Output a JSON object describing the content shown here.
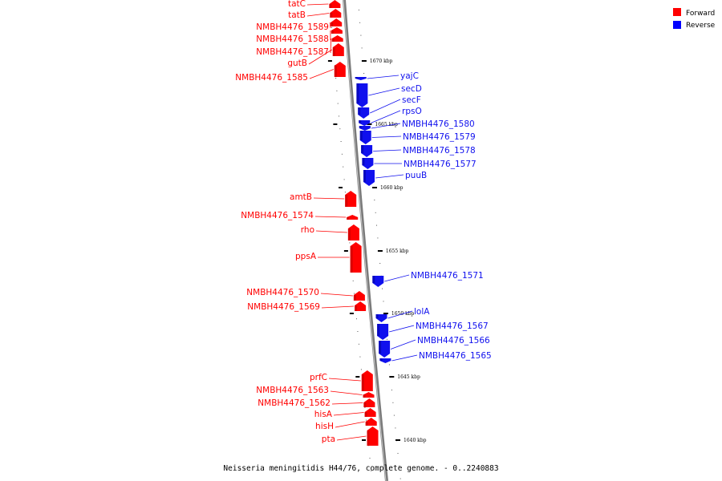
{
  "caption": "Neisseria meningitidis H44/76, complete genome. - 0..2240883",
  "legend": {
    "items": [
      {
        "label": "Forward",
        "color": "#ff0000"
      },
      {
        "label": "Reverse",
        "color": "#0000ff"
      }
    ]
  },
  "colors": {
    "forward": "#ff0000",
    "reverse": "#1010ee",
    "axis": "#808080"
  },
  "kbp_labels": [
    "1670 kbp",
    "1665 kbp",
    "1660 kbp",
    "1655 kbp",
    "1650 kbp",
    "1645 kbp",
    "1640 kbp"
  ],
  "genes_forward": [
    "tatC",
    "tatB",
    "NMBH4476_1589",
    "NMBH4476_1588",
    "NMBH4476_1587",
    "gutB",
    "NMBH4476_1585",
    "amtB",
    "NMBH4476_1574",
    "rho",
    "ppsA",
    "NMBH4476_1570",
    "NMBH4476_1569",
    "prfC",
    "NMBH4476_1563",
    "NMBH4476_1562",
    "hisA",
    "hisH",
    "pta"
  ],
  "genes_reverse": [
    "yajC",
    "secD",
    "secF",
    "rpsO",
    "NMBH4476_1580",
    "NMBH4476_1579",
    "NMBH4476_1578",
    "NMBH4476_1577",
    "puuB",
    "NMBH4476_1571",
    "lolA",
    "NMBH4476_1567",
    "NMBH4476_1566",
    "NMBH4476_1565"
  ]
}
